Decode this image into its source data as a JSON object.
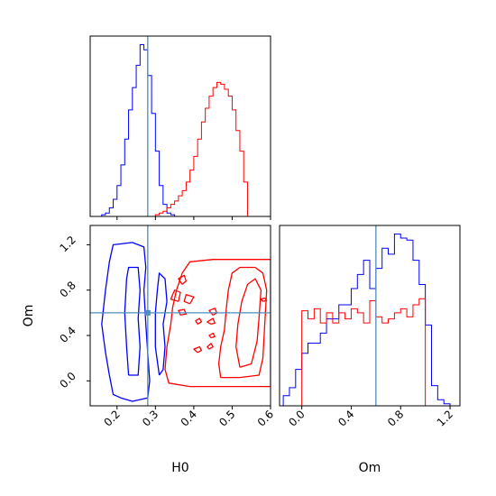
{
  "chart_data": {
    "type": "corner",
    "parameters": [
      "H0",
      "Om"
    ],
    "truth": {
      "H0": 0.28,
      "Om": 0.6
    },
    "colors": {
      "blue": "#0000ff",
      "red": "#ff0000",
      "truth": "#4c8ebf"
    },
    "panels": [
      {
        "id": "hist-H0",
        "type": "histogram",
        "xlim": [
          0.13,
          0.6
        ],
        "ticks": [
          0.2,
          0.3,
          0.4,
          0.5,
          0.6
        ],
        "bin_width": 0.01,
        "series": [
          {
            "color": "blue",
            "start": 0.16,
            "counts": [
              0.01,
              0.02,
              0.05,
              0.1,
              0.18,
              0.3,
              0.45,
              0.62,
              0.75,
              0.88,
              1.0,
              0.97,
              0.82,
              0.6,
              0.38,
              0.18,
              0.07,
              0.02,
              0.01
            ]
          },
          {
            "color": "red",
            "start": 0.3,
            "counts": [
              0.01,
              0.02,
              0.03,
              0.05,
              0.07,
              0.09,
              0.12,
              0.15,
              0.2,
              0.27,
              0.35,
              0.45,
              0.55,
              0.63,
              0.7,
              0.75,
              0.78,
              0.77,
              0.74,
              0.7,
              0.62,
              0.5,
              0.38,
              0.2
            ]
          }
        ]
      },
      {
        "id": "hist-Om",
        "type": "histogram",
        "xlim": [
          -0.18,
          1.28
        ],
        "ticks": [
          0.0,
          0.4,
          0.8,
          1.2
        ],
        "tick_labels": [
          "0.0",
          "0.4",
          "0.8",
          "1.2"
        ],
        "bin_width": 0.05,
        "series": [
          {
            "color": "blue",
            "start": -0.15,
            "counts": [
              0.05,
              0.09,
              0.18,
              0.26,
              0.31,
              0.31,
              0.36,
              0.43,
              0.43,
              0.5,
              0.5,
              0.58,
              0.65,
              0.72,
              0.58,
              0.68,
              0.78,
              0.75,
              0.85,
              0.83,
              0.82,
              0.72,
              0.6,
              0.4,
              0.1,
              0.03,
              0.01
            ]
          },
          {
            "color": "red",
            "start": 0.0,
            "counts": [
              0.47,
              0.43,
              0.48,
              0.41,
              0.46,
              0.41,
              0.46,
              0.43,
              0.48,
              0.46,
              0.41,
              0.52,
              0.44,
              0.41,
              0.43,
              0.46,
              0.48,
              0.44,
              0.5,
              0.53
            ]
          }
        ]
      },
      {
        "id": "contour-H0-Om",
        "type": "contour",
        "xlim": [
          0.13,
          0.6
        ],
        "ylim": [
          -0.22,
          1.37
        ],
        "xticks": [
          0.2,
          0.3,
          0.4,
          0.5,
          0.6
        ],
        "yticks": [
          0.0,
          0.4,
          0.8,
          1.2
        ],
        "ytick_labels": [
          "0.0",
          "0.4",
          "0.8",
          "1.2"
        ],
        "contours": [
          {
            "color": "blue",
            "points": [
              [
                0.21,
                -0.15
              ],
              [
                0.19,
                -0.12
              ],
              [
                0.18,
                0.05
              ],
              [
                0.17,
                0.25
              ],
              [
                0.16,
                0.5
              ],
              [
                0.17,
                0.8
              ],
              [
                0.18,
                1.05
              ],
              [
                0.19,
                1.2
              ],
              [
                0.24,
                1.22
              ],
              [
                0.27,
                1.18
              ],
              [
                0.275,
                1.0
              ],
              [
                0.27,
                0.8
              ],
              [
                0.275,
                0.5
              ],
              [
                0.28,
                0.25
              ],
              [
                0.285,
                0.0
              ],
              [
                0.28,
                -0.15
              ],
              [
                0.24,
                -0.18
              ],
              [
                0.21,
                -0.15
              ]
            ]
          },
          {
            "color": "blue",
            "points": [
              [
                0.23,
                0.05
              ],
              [
                0.225,
                0.3
              ],
              [
                0.22,
                0.6
              ],
              [
                0.225,
                0.9
              ],
              [
                0.23,
                1.0
              ],
              [
                0.255,
                1.0
              ],
              [
                0.26,
                0.8
              ],
              [
                0.255,
                0.55
              ],
              [
                0.26,
                0.3
              ],
              [
                0.255,
                0.05
              ],
              [
                0.23,
                0.05
              ]
            ]
          },
          {
            "color": "blue",
            "points": [
              [
                0.31,
                0.05
              ],
              [
                0.3,
                0.3
              ],
              [
                0.3,
                0.6
              ],
              [
                0.305,
                0.8
              ],
              [
                0.31,
                0.95
              ],
              [
                0.325,
                0.9
              ],
              [
                0.33,
                0.7
              ],
              [
                0.32,
                0.5
              ],
              [
                0.325,
                0.3
              ],
              [
                0.32,
                0.1
              ],
              [
                0.31,
                0.05
              ]
            ]
          },
          {
            "color": "red",
            "points": [
              [
                0.39,
                -0.05
              ],
              [
                0.335,
                -0.02
              ],
              [
                0.325,
                0.1
              ],
              [
                0.33,
                0.3
              ],
              [
                0.34,
                0.5
              ],
              [
                0.345,
                0.65
              ],
              [
                0.355,
                0.8
              ],
              [
                0.37,
                0.95
              ],
              [
                0.39,
                1.05
              ],
              [
                0.45,
                1.07
              ],
              [
                0.53,
                1.07
              ],
              [
                0.6,
                1.07
              ],
              [
                0.6,
                -0.05
              ],
              [
                0.5,
                -0.05
              ],
              [
                0.39,
                -0.05
              ]
            ]
          },
          {
            "color": "red",
            "points": [
              [
                0.47,
                0.03
              ],
              [
                0.465,
                0.15
              ],
              [
                0.47,
                0.3
              ],
              [
                0.48,
                0.45
              ],
              [
                0.485,
                0.65
              ],
              [
                0.49,
                0.8
              ],
              [
                0.5,
                0.95
              ],
              [
                0.52,
                1.0
              ],
              [
                0.56,
                1.0
              ],
              [
                0.58,
                0.95
              ],
              [
                0.59,
                0.8
              ],
              [
                0.585,
                0.5
              ],
              [
                0.58,
                0.2
              ],
              [
                0.57,
                0.05
              ],
              [
                0.52,
                0.03
              ],
              [
                0.47,
                0.03
              ]
            ]
          },
          {
            "color": "red",
            "points": [
              [
                0.52,
                0.12
              ],
              [
                0.51,
                0.3
              ],
              [
                0.515,
                0.5
              ],
              [
                0.525,
                0.7
              ],
              [
                0.54,
                0.85
              ],
              [
                0.56,
                0.9
              ],
              [
                0.575,
                0.8
              ],
              [
                0.57,
                0.55
              ],
              [
                0.565,
                0.35
              ],
              [
                0.55,
                0.15
              ],
              [
                0.52,
                0.12
              ]
            ]
          },
          {
            "color": "red",
            "points": [
              [
                0.36,
                0.7
              ],
              [
                0.34,
                0.72
              ],
              [
                0.35,
                0.8
              ],
              [
                0.365,
                0.78
              ],
              [
                0.36,
                0.7
              ]
            ]
          },
          {
            "color": "red",
            "points": [
              [
                0.37,
                0.85
              ],
              [
                0.36,
                0.9
              ],
              [
                0.375,
                0.93
              ],
              [
                0.38,
                0.88
              ],
              [
                0.37,
                0.85
              ]
            ]
          },
          {
            "color": "red",
            "points": [
              [
                0.39,
                0.68
              ],
              [
                0.375,
                0.7
              ],
              [
                0.38,
                0.76
              ],
              [
                0.4,
                0.74
              ],
              [
                0.39,
                0.68
              ]
            ]
          },
          {
            "color": "red",
            "points": [
              [
                0.365,
                0.58
              ],
              [
                0.36,
                0.62
              ],
              [
                0.375,
                0.63
              ],
              [
                0.38,
                0.59
              ],
              [
                0.365,
                0.58
              ]
            ]
          },
          {
            "color": "red",
            "points": [
              [
                0.41,
                0.25
              ],
              [
                0.4,
                0.28
              ],
              [
                0.415,
                0.3
              ],
              [
                0.42,
                0.27
              ],
              [
                0.41,
                0.25
              ]
            ]
          },
          {
            "color": "red",
            "points": [
              [
                0.41,
                0.5
              ],
              [
                0.405,
                0.53
              ],
              [
                0.415,
                0.55
              ],
              [
                0.42,
                0.52
              ],
              [
                0.41,
                0.5
              ]
            ]
          },
          {
            "color": "red",
            "points": [
              [
                0.44,
                0.28
              ],
              [
                0.435,
                0.3
              ],
              [
                0.445,
                0.33
              ],
              [
                0.45,
                0.3
              ],
              [
                0.44,
                0.28
              ]
            ]
          },
          {
            "color": "red",
            "points": [
              [
                0.45,
                0.58
              ],
              [
                0.44,
                0.62
              ],
              [
                0.455,
                0.64
              ],
              [
                0.46,
                0.6
              ],
              [
                0.45,
                0.58
              ]
            ]
          },
          {
            "color": "red",
            "points": [
              [
                0.445,
                0.5
              ],
              [
                0.435,
                0.52
              ],
              [
                0.45,
                0.55
              ],
              [
                0.455,
                0.51
              ],
              [
                0.445,
                0.5
              ]
            ]
          },
          {
            "color": "red",
            "points": [
              [
                0.445,
                0.38
              ],
              [
                0.44,
                0.4
              ],
              [
                0.45,
                0.42
              ],
              [
                0.455,
                0.39
              ],
              [
                0.445,
                0.38
              ]
            ]
          },
          {
            "color": "red",
            "points": [
              [
                0.58,
                0.7
              ],
              [
                0.575,
                0.72
              ],
              [
                0.585,
                0.73
              ],
              [
                0.59,
                0.71
              ],
              [
                0.58,
                0.7
              ]
            ]
          }
        ],
        "truth_marker": {
          "x": 0.28,
          "y": 0.6
        }
      }
    ],
    "xlabels": [
      "H0",
      "Om"
    ],
    "ylabel": "Om"
  }
}
